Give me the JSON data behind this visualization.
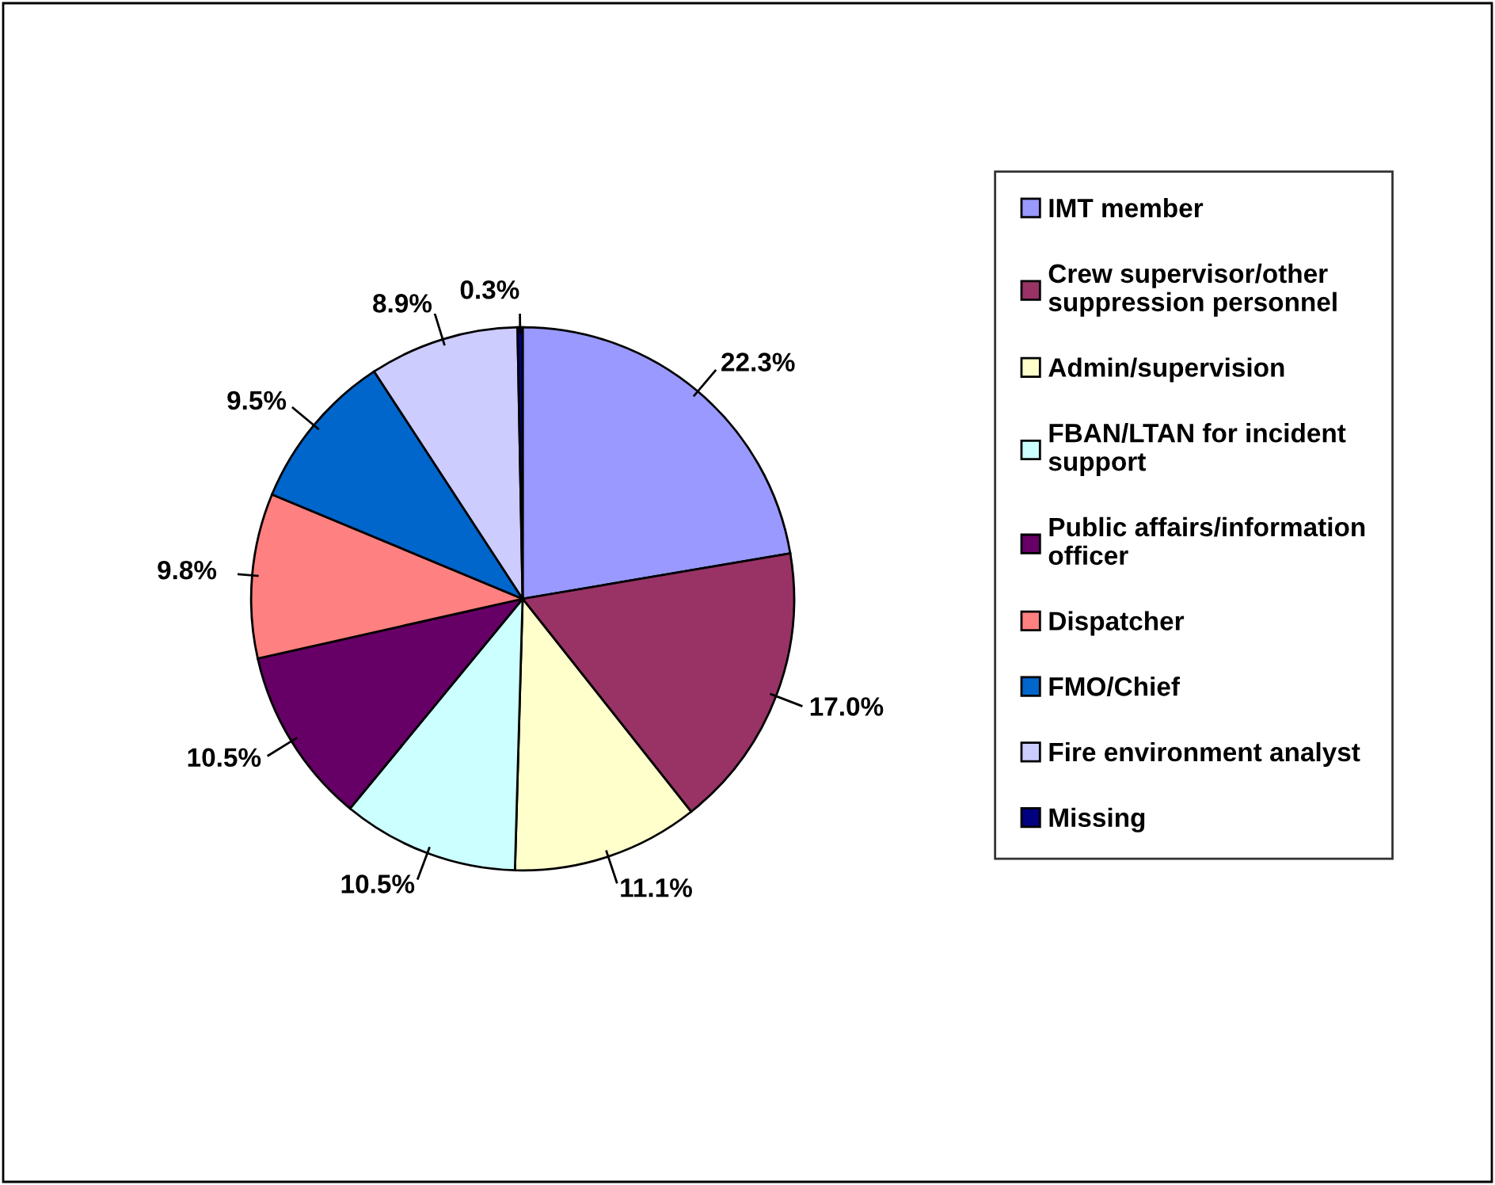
{
  "chart_data": {
    "type": "pie",
    "categories": [
      "IMT member",
      "Crew supervisor/other suppression personnel",
      "Admin/supervision",
      "FBAN/LTAN for incident support",
      "Public affairs/information officer",
      "Dispatcher",
      "FMO/Chief",
      "Fire environment analyst",
      "Missing"
    ],
    "values": [
      22.3,
      17.0,
      11.1,
      10.5,
      10.5,
      9.8,
      9.5,
      8.9,
      0.3
    ],
    "value_labels": [
      "22.3%",
      "17.0%",
      "11.1%",
      "10.5%",
      "10.5%",
      "9.8%",
      "9.5%",
      "8.9%",
      "0.3%"
    ],
    "colors": [
      "#9999ff",
      "#993366",
      "#ffffcc",
      "#ccffff",
      "#660066",
      "#ff8080",
      "#0066cc",
      "#ccccff",
      "#000080"
    ],
    "legend": "right"
  }
}
